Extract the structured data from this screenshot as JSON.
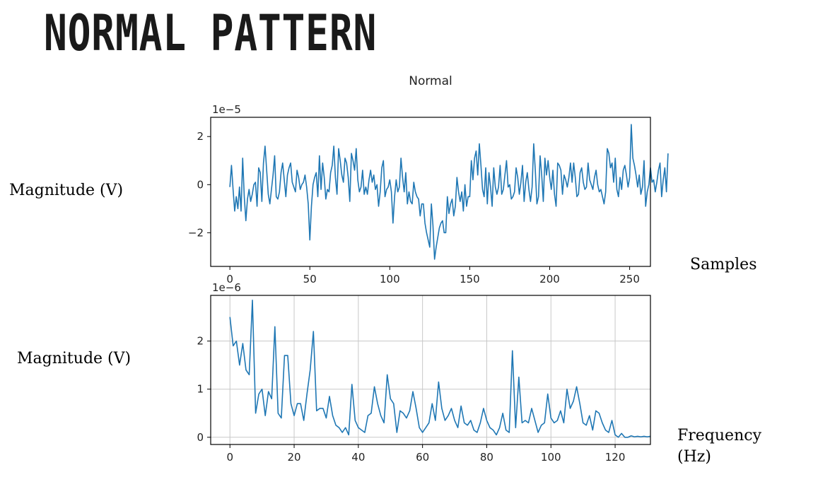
{
  "slide": {
    "title": "NORMAL PATTERN",
    "label_mag_top": "Magnitude (V)",
    "label_samples": "Samples",
    "label_mag_bottom": "Magnitude (V)",
    "label_freq_line1": "Frequency",
    "label_freq_line2": "(Hz)"
  },
  "colors": {
    "line": "#1f77b4",
    "grid": "#c8c8c8",
    "axis": "#000000"
  },
  "chart_data": [
    {
      "type": "line",
      "title": "Normal",
      "offset_text": "1e−5",
      "xlabel": "",
      "ylabel": "",
      "xlim": [
        -12,
        263
      ],
      "ylim": [
        -3.4,
        2.8
      ],
      "xticks": [
        0,
        50,
        100,
        150,
        200,
        250
      ],
      "yticks": [
        -2,
        0,
        2
      ],
      "ytick_labels": [
        "−2",
        "0",
        "2"
      ],
      "grid": false,
      "series": [
        {
          "x_start": 0,
          "x_step": 1,
          "values": [
            -0.1,
            0.8,
            -0.2,
            -1.1,
            -0.5,
            -1.0,
            -0.1,
            -1.1,
            1.1,
            -0.5,
            -1.5,
            -0.6,
            -0.2,
            -0.7,
            -0.4,
            0.0,
            0.1,
            -0.9,
            0.7,
            0.5,
            -0.7,
            0.9,
            1.6,
            0.6,
            -0.4,
            -0.8,
            -0.2,
            0.4,
            1.2,
            -0.5,
            -0.6,
            -0.3,
            0.5,
            0.9,
            0.2,
            -0.5,
            0.4,
            0.7,
            0.9,
            0.1,
            -0.1,
            -0.3,
            0.6,
            0.3,
            -0.2,
            0.0,
            0.1,
            0.4,
            -0.1,
            -0.8,
            -2.3,
            -0.9,
            0.0,
            0.3,
            0.5,
            -0.5,
            1.2,
            -0.2,
            0.9,
            0.3,
            -0.6,
            -0.2,
            -0.3,
            0.5,
            0.8,
            1.6,
            0.3,
            -0.4,
            1.5,
            1.0,
            0.4,
            0.1,
            1.1,
            0.9,
            0.3,
            -0.7,
            1.3,
            1.0,
            0.6,
            1.5,
            0.2,
            -0.3,
            -0.1,
            0.6,
            -0.4,
            -0.1,
            -0.4,
            0.2,
            0.6,
            0.1,
            0.4,
            -0.2,
            0.0,
            -0.9,
            -0.3,
            0.7,
            1.0,
            -0.5,
            -0.2,
            -0.1,
            0.2,
            -0.3,
            -1.6,
            -0.5,
            0.2,
            -0.3,
            -0.1,
            1.1,
            0.3,
            -0.3,
            0.5,
            -0.8,
            -0.3,
            -0.7,
            -0.8,
            0.1,
            -0.3,
            -0.5,
            -0.6,
            -1.3,
            -0.8,
            -0.8,
            -1.6,
            -2.0,
            -2.3,
            -2.6,
            -0.8,
            -1.7,
            -3.1,
            -2.6,
            -2.2,
            -1.8,
            -1.6,
            -1.5,
            -2.0,
            -2.0,
            -0.5,
            -1.2,
            -0.8,
            -0.6,
            -1.3,
            -0.9,
            0.3,
            -0.3,
            -0.7,
            -0.3,
            -1.1,
            0.0,
            -0.9,
            -0.5,
            -0.5,
            1.0,
            0.2,
            1.1,
            1.4,
            0.4,
            1.7,
            0.8,
            -0.2,
            -0.5,
            0.7,
            -0.8,
            0.5,
            -0.1,
            -0.9,
            0.7,
            -0.1,
            -0.4,
            -0.1,
            0.8,
            -0.4,
            -0.2,
            0.4,
            1.0,
            -0.1,
            0.0,
            -0.6,
            -0.5,
            -0.3,
            0.7,
            0.3,
            -0.4,
            0.1,
            0.8,
            -0.7,
            0.1,
            0.5,
            -0.2,
            -0.7,
            -0.1,
            1.7,
            0.6,
            -0.8,
            -0.5,
            1.2,
            0.4,
            -0.7,
            1.1,
            0.4,
            1.0,
            0.3,
            -0.2,
            0.6,
            -0.4,
            -0.9,
            0.9,
            0.8,
            0.6,
            -0.4,
            0.4,
            0.2,
            -0.1,
            0.3,
            0.9,
            0.1,
            0.9,
            0.3,
            -0.5,
            -0.4,
            0.5,
            0.7,
            0.1,
            -0.2,
            -0.1,
            0.9,
            0.2,
            0.0,
            -0.2,
            0.3,
            0.6,
            0.0,
            -0.3,
            -0.2,
            -0.5,
            -0.8,
            -0.3,
            1.5,
            1.3,
            0.7,
            0.9,
            0.1,
            1.1,
            -0.2,
            -0.5,
            0.3,
            -0.2,
            0.6,
            0.8,
            0.4,
            -0.1,
            0.3,
            2.5,
            1.1,
            0.8,
            0.4,
            -0.1,
            0.4,
            -0.4,
            -0.1,
            1.0,
            -0.9,
            -0.3,
            0.0,
            0.7,
            0.1,
            0.2,
            -0.3,
            0.1,
            0.6,
            0.9,
            -0.5,
            0.2,
            0.7,
            -0.3,
            1.3
          ]
        }
      ]
    },
    {
      "type": "line",
      "title": "",
      "offset_text": "1e−6",
      "xlabel": "",
      "ylabel": "",
      "xlim": [
        -6,
        131
      ],
      "ylim": [
        -0.15,
        2.95
      ],
      "xticks": [
        0,
        20,
        40,
        60,
        80,
        100,
        120
      ],
      "yticks": [
        0,
        1,
        2
      ],
      "ytick_labels": [
        "0",
        "1",
        "2"
      ],
      "grid": true,
      "series": [
        {
          "x_start": 0,
          "x_step": 1,
          "values": [
            2.5,
            1.9,
            2.0,
            1.5,
            1.95,
            1.4,
            1.3,
            2.85,
            0.5,
            0.9,
            1.0,
            0.45,
            0.95,
            0.8,
            2.3,
            0.5,
            0.4,
            1.7,
            1.7,
            0.7,
            0.45,
            0.7,
            0.7,
            0.35,
            0.9,
            1.4,
            2.2,
            0.55,
            0.6,
            0.6,
            0.4,
            0.85,
            0.45,
            0.25,
            0.2,
            0.1,
            0.2,
            0.05,
            1.1,
            0.35,
            0.2,
            0.15,
            0.1,
            0.45,
            0.5,
            1.05,
            0.7,
            0.45,
            0.3,
            1.3,
            0.8,
            0.7,
            0.1,
            0.55,
            0.5,
            0.4,
            0.55,
            0.95,
            0.6,
            0.2,
            0.1,
            0.2,
            0.3,
            0.7,
            0.35,
            1.15,
            0.6,
            0.35,
            0.45,
            0.6,
            0.35,
            0.2,
            0.65,
            0.3,
            0.25,
            0.35,
            0.15,
            0.1,
            0.3,
            0.6,
            0.35,
            0.2,
            0.15,
            0.05,
            0.2,
            0.5,
            0.15,
            0.1,
            1.8,
            0.2,
            1.25,
            0.3,
            0.35,
            0.3,
            0.6,
            0.35,
            0.1,
            0.25,
            0.3,
            0.9,
            0.4,
            0.3,
            0.35,
            0.55,
            0.3,
            1.0,
            0.6,
            0.75,
            1.05,
            0.7,
            0.3,
            0.25,
            0.45,
            0.15,
            0.55,
            0.5,
            0.3,
            0.15,
            0.1,
            0.35,
            0.05,
            0.0,
            0.08,
            0.0,
            0.0,
            0.03,
            0.01,
            0.02,
            0.01,
            0.02,
            0.01,
            0.02
          ]
        }
      ]
    }
  ]
}
